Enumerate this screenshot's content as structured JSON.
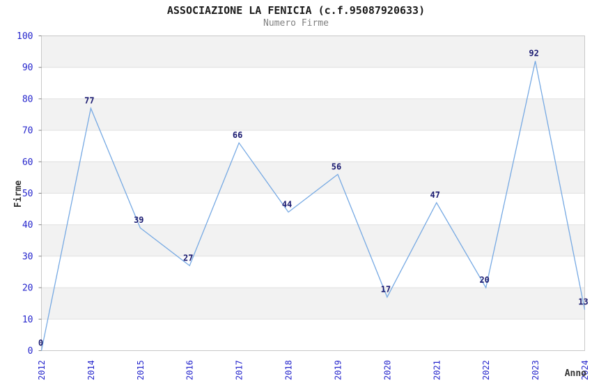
{
  "chart_data": {
    "type": "line",
    "title": "ASSOCIAZIONE LA FENICIA (c.f.95087920633)",
    "subtitle": "Numero Firme",
    "xlabel": "Anno",
    "ylabel": "Firme",
    "categories": [
      "2012",
      "2014",
      "2015",
      "2016",
      "2017",
      "2018",
      "2019",
      "2020",
      "2021",
      "2022",
      "2023",
      "2024"
    ],
    "values": [
      0,
      77,
      39,
      27,
      66,
      44,
      56,
      17,
      47,
      20,
      92,
      13
    ],
    "point_labels": [
      "0",
      "77",
      "39",
      "27",
      "66",
      "44",
      "56",
      "17",
      "47",
      "20",
      "92",
      "13"
    ],
    "y_ticks": [
      "0",
      "10",
      "20",
      "30",
      "40",
      "50",
      "60",
      "70",
      "80",
      "90",
      "100"
    ],
    "ylim": [
      0,
      100
    ],
    "ytick_step": 10,
    "legend": "none",
    "grid": "horizontal-bands-alternating",
    "marker": "none",
    "colors": {
      "line": "#76a9e3",
      "point_label": "#191970",
      "tick_label": "#2525cc",
      "band": "#f2f2f2",
      "gridline": "#e0e0e0",
      "plot_border": "#c8c8c8",
      "tick_mark": "#808080",
      "title": "#1a1a1a",
      "subtitle": "#808080",
      "axis_label": "#333333",
      "background": "#ffffff"
    }
  }
}
